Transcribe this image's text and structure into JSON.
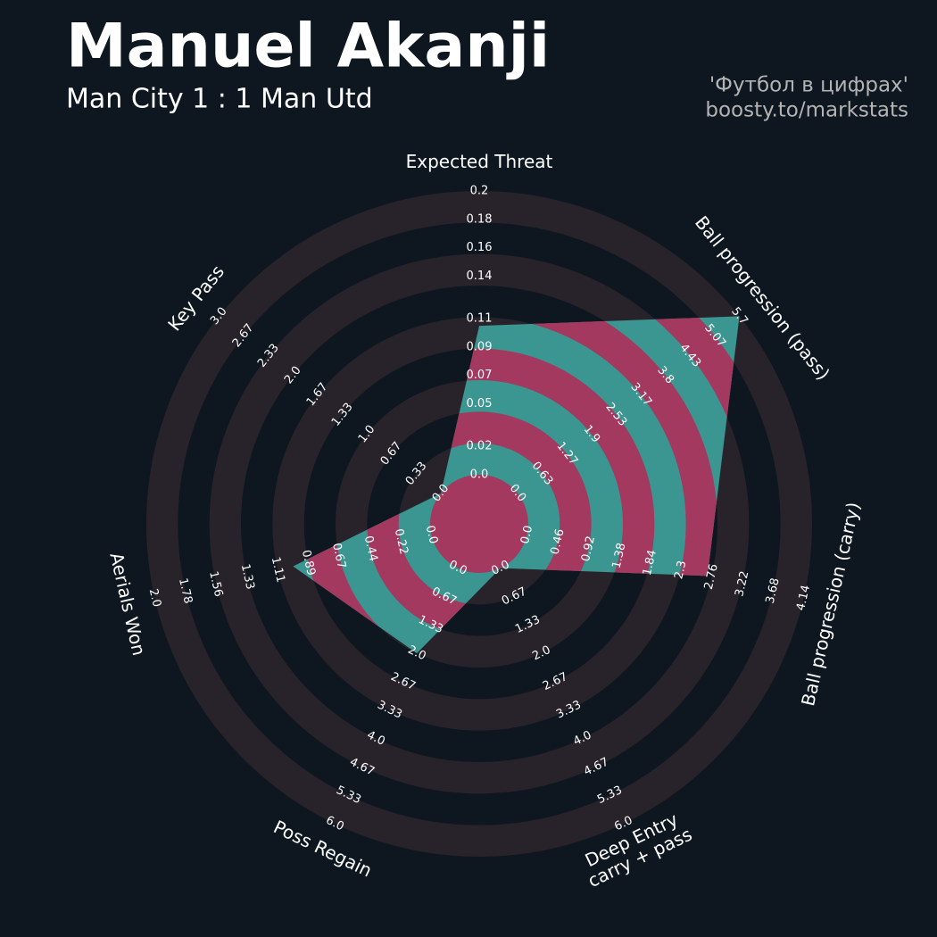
{
  "header": {
    "title": "Manuel Akanji",
    "subtitle": "Man City 1 : 1 Man Utd",
    "credit": [
      "'Футбол в цифрах'",
      "boosty.to/markstats"
    ]
  },
  "chart_data": {
    "type": "radar",
    "colors": {
      "background": "#0e1720",
      "ring": "#28232a",
      "radar": "#3b9590",
      "radar_alt": "#a3395e"
    },
    "params": [
      {
        "label": [
          "Expected Threat"
        ],
        "range": [
          0,
          0.2
        ],
        "value": 0.105,
        "ticks": [
          {
            "value": 0,
            "label": "0.0"
          },
          0.02,
          0.05,
          0.07,
          0.09,
          0.11,
          0.14,
          0.16,
          0.18,
          0.2
        ]
      },
      {
        "label": [
          "Ball progression (pass)"
        ],
        "range": [
          0,
          5.7
        ],
        "value": 5.7,
        "ticks": [
          {
            "value": 0,
            "label": "0.0"
          },
          0.63,
          1.27,
          1.9,
          2.53,
          3.17,
          3.8,
          4.43,
          5.07,
          5.7
        ]
      },
      {
        "label": [
          "Ball progression (carry)"
        ],
        "range": [
          0,
          4.14
        ],
        "value": 2.7,
        "ticks": [
          {
            "value": 0,
            "label": "0.0"
          },
          0.46,
          0.92,
          1.38,
          1.84,
          2.3,
          2.76,
          3.22,
          3.68,
          4.14
        ]
      },
      {
        "label": [
          "Deep Entry",
          "carry + pass"
        ],
        "range": [
          0,
          6
        ],
        "value": 0,
        "ticks": [
          {
            "value": 0,
            "label": "0.0"
          },
          0.67,
          1.33,
          {
            "value": 2,
            "label": "2.0"
          },
          2.67,
          3.33,
          {
            "value": 4,
            "label": "4.0"
          },
          4.67,
          5.33,
          {
            "value": 6,
            "label": "6.0"
          }
        ]
      },
      {
        "label": [
          "Poss Regain"
        ],
        "range": [
          0,
          6
        ],
        "value": 2,
        "ticks": [
          {
            "value": 0,
            "label": "0.0"
          },
          0.67,
          1.33,
          {
            "value": 2,
            "label": "2.0"
          },
          2.67,
          3.33,
          {
            "value": 4,
            "label": "4.0"
          },
          4.67,
          5.33,
          {
            "value": 6,
            "label": "6.0"
          }
        ]
      },
      {
        "label": [
          "Aerials Won"
        ],
        "range": [
          0,
          2
        ],
        "value": 1,
        "ticks": [
          {
            "value": 0,
            "label": "0.0"
          },
          0.22,
          0.44,
          0.67,
          0.89,
          1.11,
          1.33,
          1.56,
          1.78,
          {
            "value": 2,
            "label": "2.0"
          }
        ]
      },
      {
        "label": [
          "Key Pass"
        ],
        "range": [
          0,
          3
        ],
        "value": 0,
        "ticks": [
          {
            "value": 0,
            "label": "0.0"
          },
          0.33,
          0.67,
          {
            "value": 1,
            "label": "1.0"
          },
          1.33,
          1.67,
          {
            "value": 2,
            "label": "2.0"
          },
          2.33,
          2.67,
          {
            "value": 3,
            "label": "3.0"
          }
        ]
      }
    ]
  }
}
